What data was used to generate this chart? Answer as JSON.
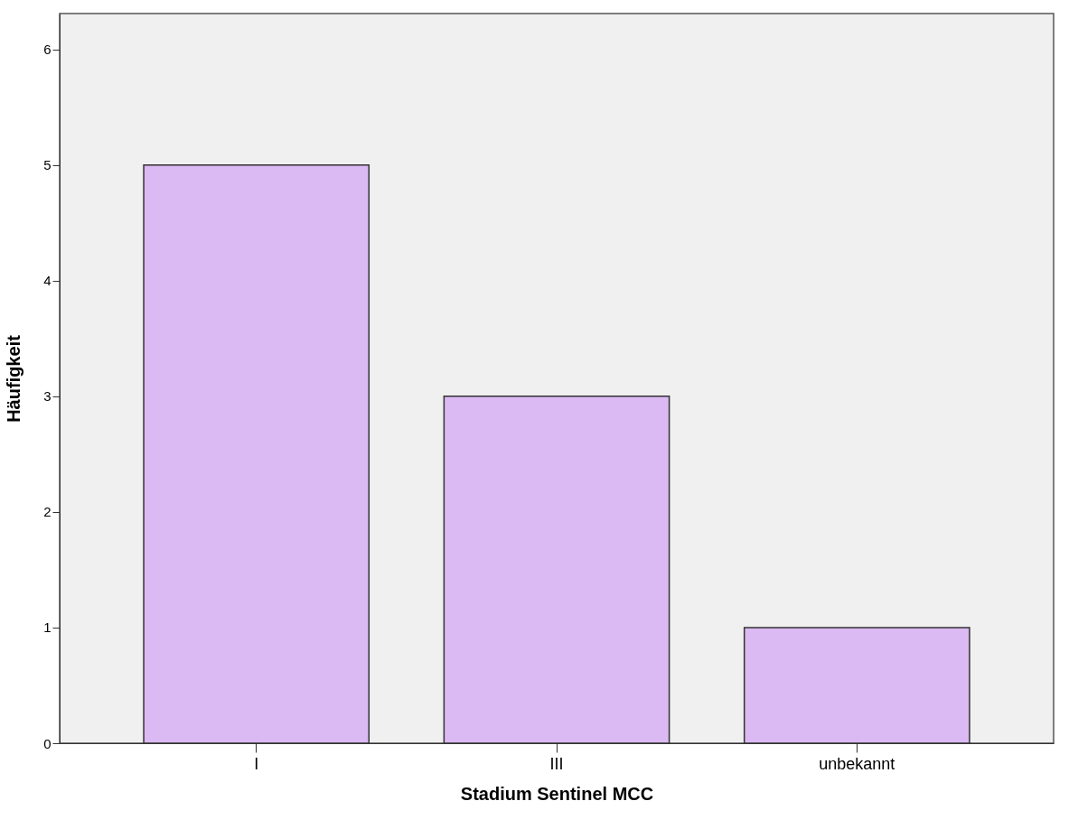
{
  "chart_data": {
    "type": "bar",
    "xlabel": "Stadium Sentinel MCC",
    "ylabel": "Häufigkeit",
    "categories": [
      "I",
      "III",
      "unbekannt"
    ],
    "series": [
      {
        "color": "#dbb9f2",
        "values": [
          5,
          3,
          1
        ]
      }
    ],
    "ylim": [
      0,
      6.31
    ],
    "yticks": [
      0,
      1,
      2,
      3,
      4,
      5,
      6
    ],
    "grid": false
  }
}
